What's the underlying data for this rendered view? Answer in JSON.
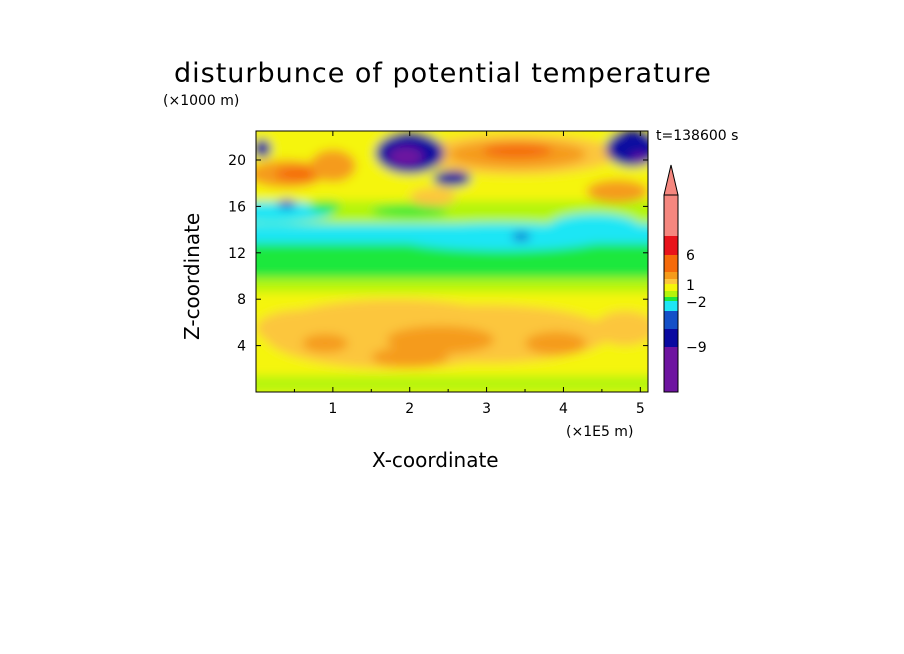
{
  "chart_data": {
    "type": "heatmap",
    "title": "disturbunce of potential temperature",
    "xlabel": "X-coordinate",
    "ylabel": "Z-coordinate",
    "x_unit": "(×1E5 m)",
    "y_unit": "(×1000 m)",
    "time_label": "t=138600 s",
    "xlim": [
      0,
      5.1
    ],
    "ylim": [
      0,
      22.5
    ],
    "x_ticks": [
      "1",
      "2",
      "3",
      "4",
      "5"
    ],
    "y_ticks": [
      "4",
      "8",
      "12",
      "16",
      "20"
    ],
    "colorbar": {
      "tick_labels": [
        "6",
        "1",
        "−2",
        "−9"
      ],
      "colors": [
        "#f5877f",
        "#e8131b",
        "#f56a0a",
        "#f59b1a",
        "#fcc63c",
        "#f5f50a",
        "#b4f50a",
        "#1ee83c",
        "#1ee6f5",
        "#1450c8",
        "#0a0aa0",
        "#6e14a0",
        "#e614b4"
      ]
    }
  }
}
